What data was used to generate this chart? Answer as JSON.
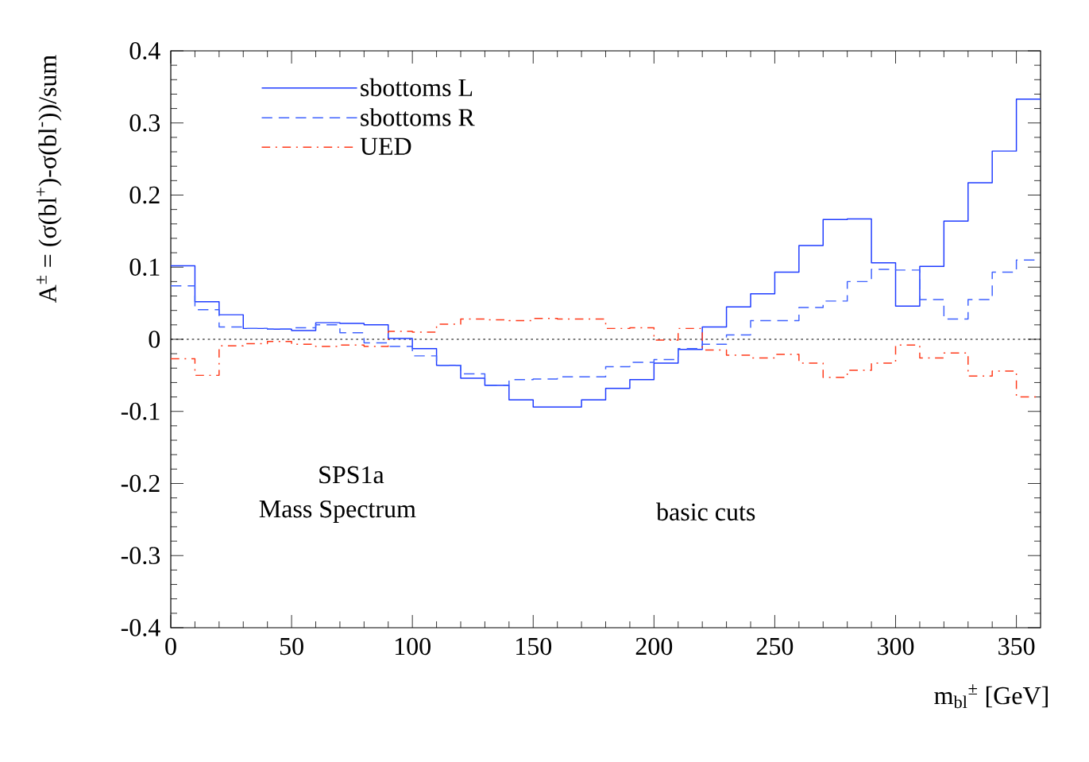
{
  "chart_data": {
    "type": "histogram",
    "xlabel": "m$_{bl}$$^{±}$ [GeV]",
    "ylabel": "A$^{±}$ = (σ(bl$^{+}$)-σ(bl$^{-}$))/sum",
    "bins": [
      0,
      10,
      20,
      30,
      40,
      50,
      60,
      70,
      80,
      90,
      100,
      110,
      120,
      130,
      140,
      150,
      160,
      170,
      180,
      190,
      200,
      210,
      220,
      230,
      240,
      250,
      260,
      270,
      280,
      290,
      300,
      310,
      320,
      330,
      340,
      350,
      360
    ],
    "series": [
      {
        "name": "sbottoms L",
        "color": "#1f3cff",
        "line_style": "solid",
        "values": [
          0.102,
          0.052,
          0.034,
          0.015,
          0.014,
          0.012,
          0.023,
          0.022,
          0.02,
          0.001,
          -0.013,
          -0.036,
          -0.054,
          -0.064,
          -0.084,
          -0.094,
          -0.094,
          -0.084,
          -0.068,
          -0.056,
          -0.033,
          -0.014,
          0.017,
          0.045,
          0.063,
          0.093,
          0.13,
          0.166,
          0.167,
          0.106,
          0.046,
          0.101,
          0.164,
          0.217,
          0.261,
          0.333
        ]
      },
      {
        "name": "sbottoms R",
        "color": "#3f62ff",
        "line_style": "dashed",
        "values": [
          0.074,
          0.041,
          0.017,
          0.015,
          0.014,
          0.016,
          0.02,
          0.009,
          -0.005,
          -0.01,
          -0.023,
          -0.036,
          -0.048,
          -0.064,
          -0.056,
          -0.055,
          -0.052,
          -0.052,
          -0.038,
          -0.032,
          -0.028,
          -0.013,
          -0.007,
          0.006,
          0.026,
          0.026,
          0.044,
          0.053,
          0.08,
          0.097,
          0.096,
          0.055,
          0.028,
          0.055,
          0.093,
          0.11
        ]
      },
      {
        "name": "UED",
        "color": "#ff3a1a",
        "line_style": "dashdot",
        "values": [
          -0.027,
          -0.05,
          -0.009,
          -0.006,
          -0.003,
          -0.007,
          -0.01,
          -0.008,
          -0.01,
          0.011,
          0.01,
          0.021,
          0.028,
          0.027,
          0.026,
          0.029,
          0.028,
          0.028,
          0.015,
          0.016,
          -0.001,
          0.015,
          -0.015,
          -0.022,
          -0.026,
          -0.021,
          -0.033,
          -0.053,
          -0.043,
          -0.033,
          -0.008,
          -0.026,
          -0.019,
          -0.051,
          -0.044,
          -0.08
        ]
      }
    ],
    "xlim": [
      0,
      360
    ],
    "xticks": [
      0,
      50,
      100,
      150,
      200,
      250,
      300,
      350
    ],
    "ylim": [
      -0.4,
      0.4
    ],
    "yticks": [
      -0.4,
      -0.3,
      -0.2,
      -0.1,
      0,
      0.1,
      0.2,
      0.3,
      0.4
    ],
    "ref_lines": [
      {
        "axis": "y",
        "value": 0,
        "color": "#000000",
        "line_style": "dotted"
      }
    ],
    "legend": "top left",
    "grid": false,
    "annotations": [
      "SPS1a",
      "Mass Spectrum",
      "basic cuts"
    ]
  }
}
